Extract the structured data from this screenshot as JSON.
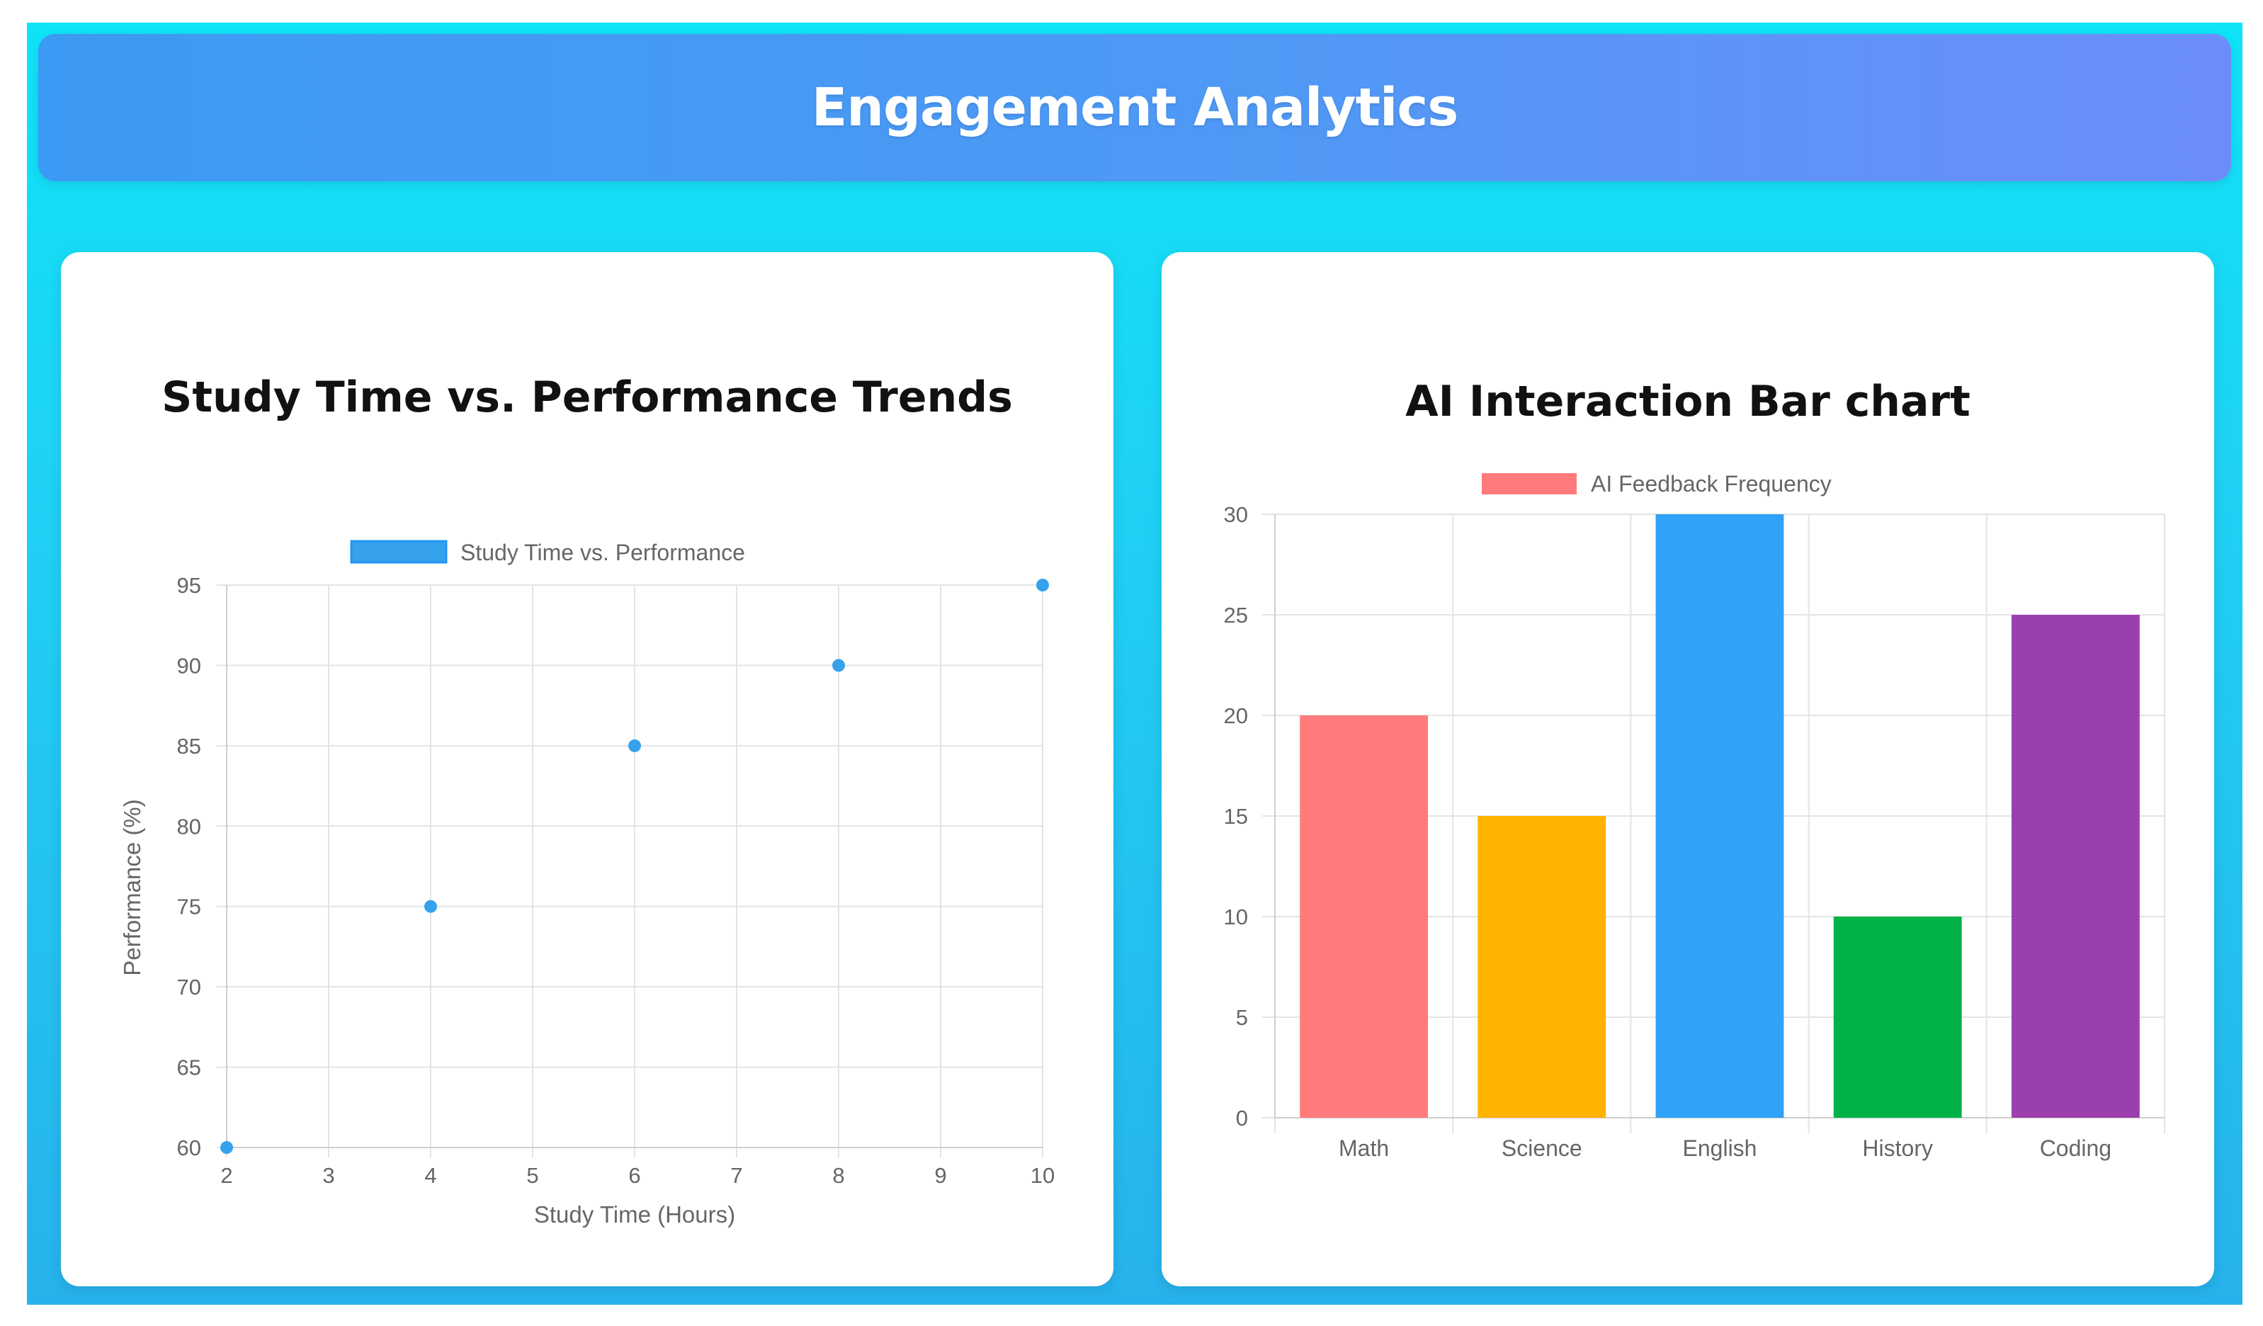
{
  "header": {
    "title": "Engagement Analytics"
  },
  "colors": {
    "point": "#36a2eb",
    "grid": "#e4e4e4",
    "tick": "#666666"
  },
  "chart_data": [
    {
      "type": "scatter",
      "title": "Study Time vs. Performance Trends",
      "legend": [
        "Study Time vs. Performance"
      ],
      "legend_position": "top",
      "xlabel": "Study Time (Hours)",
      "ylabel": "Performance (%)",
      "xlim": [
        2,
        10
      ],
      "ylim": [
        60,
        95
      ],
      "xticks": [
        2,
        3,
        4,
        5,
        6,
        7,
        8,
        9,
        10
      ],
      "yticks": [
        60,
        65,
        70,
        75,
        80,
        85,
        90,
        95
      ],
      "grid": true,
      "series": [
        {
          "name": "Study Time vs. Performance",
          "color": "#36a2eb",
          "points": [
            {
              "x": 2,
              "y": 60
            },
            {
              "x": 4,
              "y": 75
            },
            {
              "x": 6,
              "y": 85
            },
            {
              "x": 8,
              "y": 90
            },
            {
              "x": 10,
              "y": 95
            }
          ]
        }
      ]
    },
    {
      "type": "bar",
      "title": "AI Interaction Bar chart",
      "legend": [
        "AI Feedback Frequency"
      ],
      "legend_position": "top",
      "legend_color": "#ff7b7b",
      "categories": [
        "Math",
        "Science",
        "English",
        "History",
        "Coding"
      ],
      "values": [
        20,
        15,
        30,
        10,
        25
      ],
      "bar_colors": [
        "#ff7b7b",
        "#ffb300",
        "#30a2f7",
        "#00b248",
        "#9c3fae"
      ],
      "xlabel": "",
      "ylabel": "",
      "ylim": [
        0,
        30
      ],
      "yticks": [
        0,
        5,
        10,
        15,
        20,
        25,
        30
      ],
      "grid": true
    }
  ]
}
